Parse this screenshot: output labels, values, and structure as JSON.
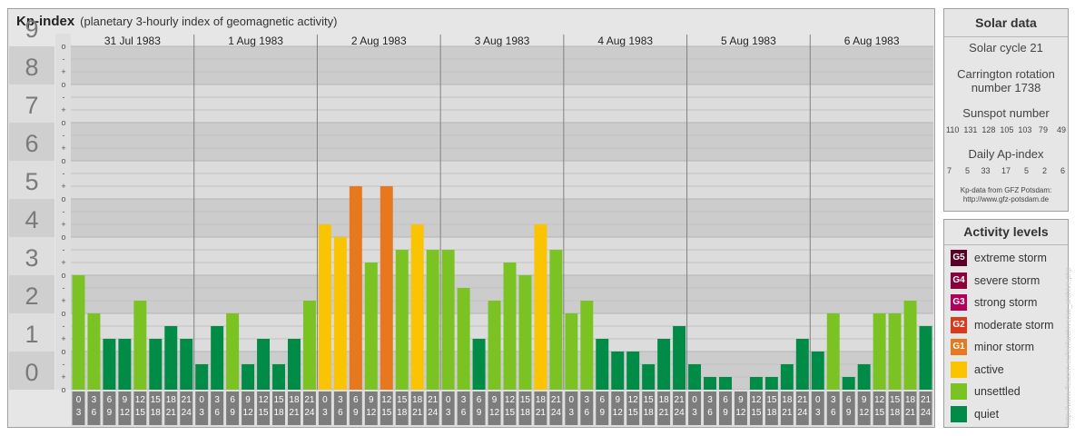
{
  "header": {
    "title": "Kp-index",
    "subtitle": "(planetary 3-hourly index of geomagnetic activity)"
  },
  "chart_data": {
    "type": "bar",
    "title": "Kp-index",
    "subtitle": "(planetary 3-hourly index of geomagnetic activity)",
    "ylim": [
      0,
      9
    ],
    "yticks": [
      "0",
      "1",
      "2",
      "3",
      "4",
      "5",
      "6",
      "7",
      "8",
      "9"
    ],
    "minor_tick_labels": [
      "o",
      "+",
      "-"
    ],
    "days": [
      "31 Jul 1983",
      "1 Aug 1983",
      "2 Aug 1983",
      "3 Aug 1983",
      "4 Aug 1983",
      "5 Aug 1983",
      "6 Aug 1983"
    ],
    "interval_start": [
      "0",
      "3",
      "6",
      "9",
      "12",
      "15",
      "18",
      "21"
    ],
    "interval_end": [
      "3",
      "6",
      "9",
      "12",
      "15",
      "18",
      "21",
      "24"
    ],
    "values": [
      [
        3.0,
        2.0,
        1.333,
        1.333,
        2.333,
        1.333,
        1.667,
        1.333
      ],
      [
        0.667,
        1.667,
        2.0,
        0.667,
        1.333,
        0.667,
        1.333,
        2.333
      ],
      [
        4.333,
        4.0,
        5.333,
        3.333,
        5.333,
        3.667,
        4.333,
        3.667
      ],
      [
        3.667,
        2.667,
        1.333,
        2.333,
        3.333,
        3.0,
        4.333,
        3.667
      ],
      [
        2.0,
        2.333,
        1.333,
        1.0,
        1.0,
        0.667,
        1.333,
        1.667
      ],
      [
        0.667,
        0.333,
        0.333,
        0.0,
        0.333,
        0.333,
        0.667,
        1.333
      ],
      [
        1.0,
        2.0,
        0.333,
        0.667,
        2.0,
        2.0,
        2.333,
        1.667
      ]
    ],
    "color_scale": {
      "quiet": "#008c46",
      "unsettled": "#7ac323",
      "active": "#fbc400",
      "minor_storm": "#e8781e",
      "moderate_storm": "#d93a1a",
      "strong_storm": "#b5005a",
      "severe_storm": "#8c003c",
      "extreme_storm": "#5a0028"
    },
    "grid": true
  },
  "solar": {
    "title": "Solar data",
    "cycle": "Solar cycle 21",
    "carrington_line1": "Carrington rotation",
    "carrington_line2": "number 1738",
    "sunspot_label": "Sunspot number",
    "sunspot_values": "110  131  128  105  103   79    49",
    "ap_label": "Daily Ap-index",
    "ap_values": "7      5     33     17      5      2      6",
    "credit_line1": "Kp-data from GFZ Potsdam:",
    "credit_line2": "http://www.gfz-potsdam.de"
  },
  "levels": {
    "title": "Activity levels",
    "items": [
      {
        "code": "G5",
        "label": "extreme storm",
        "color": "#5a0028"
      },
      {
        "code": "G4",
        "label": "severe storm",
        "color": "#8c003c"
      },
      {
        "code": "G3",
        "label": "strong storm",
        "color": "#b5005a"
      },
      {
        "code": "G2",
        "label": "moderate storm",
        "color": "#d93a1a"
      },
      {
        "code": "G1",
        "label": "minor storm",
        "color": "#e8781e"
      },
      {
        "code": "",
        "label": "active",
        "color": "#fbc400"
      },
      {
        "code": "",
        "label": "unsettled",
        "color": "#7ac323"
      },
      {
        "code": "",
        "label": "quiet",
        "color": "#008c46"
      }
    ]
  },
  "watermark": "http://www.fleusen.eu/lenfarchive/ao_archive.php"
}
